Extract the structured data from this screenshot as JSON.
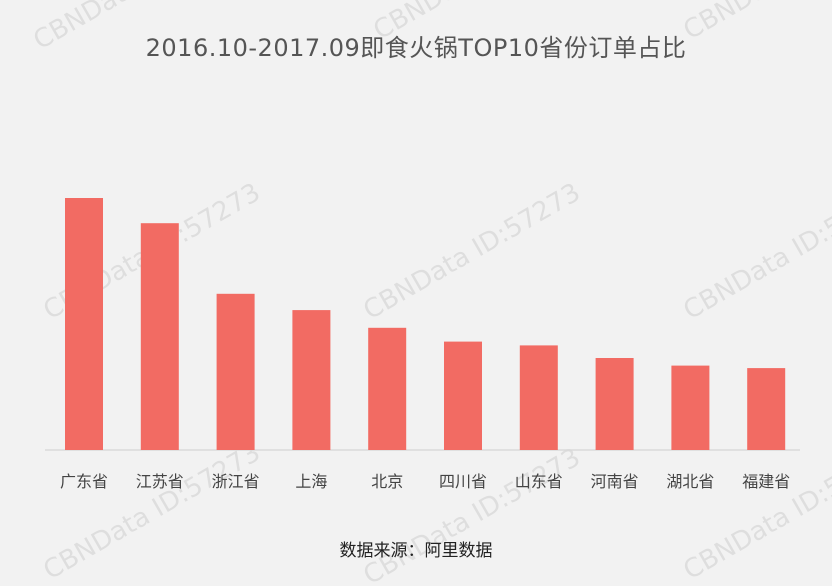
{
  "title": "2016.10-2017.09即食火锅TOP10省份订单占比",
  "source": "数据来源：阿里数据",
  "watermark": "CBNData ID:57273",
  "colors": {
    "bar": "#f26b63",
    "axis": "#d9d9d9",
    "tick_label": "#444444",
    "background": "#f2f2f2"
  },
  "chart_data": {
    "type": "bar",
    "categories": [
      "广东省",
      "江苏省",
      "浙江省",
      "上海",
      "北京",
      "四川省",
      "山东省",
      "河南省",
      "湖北省",
      "福建省"
    ],
    "values": [
      100,
      90,
      62,
      55.5,
      48.5,
      43,
      41.5,
      36.5,
      33.5,
      32.5
    ],
    "ylim": [
      0,
      100
    ],
    "grid": false,
    "legend": "none"
  }
}
